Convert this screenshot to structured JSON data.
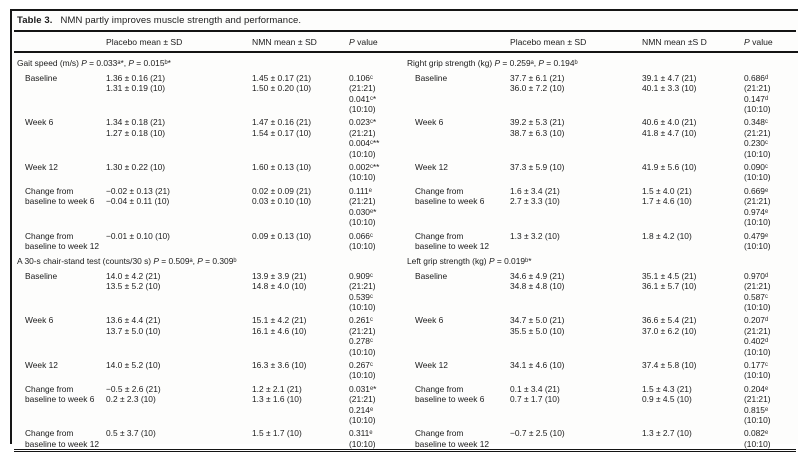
{
  "colors": {
    "text": "#1b1b1b",
    "rule": "#141414",
    "background": "#fdfdfc"
  },
  "table": {
    "caption_label": "Table 3.",
    "caption_text": "NMN partly improves muscle strength and performance.",
    "halves": [
      {
        "columns": [
          "",
          "Placebo mean ± SD",
          "NMN mean ± SD",
          "P value"
        ],
        "sections": [
          {
            "title": "Gait speed (m/s) P = 0.033ᵃ*, P = 0.015ᵇ*",
            "rows": [
              {
                "label": [
                  "Baseline"
                ],
                "placebo": [
                  "1.36 ± 0.16 (21)",
                  "1.31 ± 0.19 (10)"
                ],
                "nmn": [
                  "1.45 ± 0.17 (21)",
                  "1.50 ± 0.20 (10)"
                ],
                "p": [
                  "0.106ᶜ",
                  "(21:21)",
                  "0.041ᶜ*",
                  "(10:10)"
                ]
              },
              {
                "label": [
                  "Week 6"
                ],
                "placebo": [
                  "1.34 ± 0.18 (21)",
                  "1.27 ± 0.18 (10)"
                ],
                "nmn": [
                  "1.47 ± 0.16 (21)",
                  "1.54 ± 0.17 (10)"
                ],
                "p": [
                  "0.023ᶜ*",
                  "(21:21)",
                  "0.004ᶜ**",
                  "(10:10)"
                ]
              },
              {
                "label": [
                  "Week 12"
                ],
                "placebo": [
                  "1.30 ± 0.22 (10)"
                ],
                "nmn": [
                  "1.60 ± 0.13 (10)"
                ],
                "p": [
                  "0.002ᶜ**",
                  "(10:10)"
                ]
              },
              {
                "label": [
                  "Change from",
                  "baseline to week 6"
                ],
                "placebo": [
                  "−0.02 ± 0.13 (21)",
                  "−0.04 ± 0.11 (10)"
                ],
                "nmn": [
                  "0.02 ± 0.09 (21)",
                  "0.03 ± 0.10 (10)"
                ],
                "p": [
                  "0.111ᵉ",
                  "(21:21)",
                  "0.030ᵉ*",
                  "(10:10)"
                ]
              },
              {
                "label": [
                  "Change from",
                  "baseline to week 12"
                ],
                "placebo": [
                  "−0.01 ± 0.10 (10)"
                ],
                "nmn": [
                  "0.09 ± 0.13 (10)"
                ],
                "p": [
                  "0.066ᶜ",
                  "(10:10)"
                ]
              }
            ]
          },
          {
            "title": "A 30-s chair-stand test (counts/30 s) P = 0.509ᵃ, P = 0.309ᵇ",
            "rows": [
              {
                "label": [
                  "Baseline"
                ],
                "placebo": [
                  "14.0 ± 4.2 (21)",
                  "13.5 ± 5.2 (10)"
                ],
                "nmn": [
                  "13.9 ± 3.9 (21)",
                  "14.8 ± 4.0 (10)"
                ],
                "p": [
                  "0.909ᶜ",
                  "(21:21)",
                  "0.539ᶜ",
                  "(10:10)"
                ]
              },
              {
                "label": [
                  "Week 6"
                ],
                "placebo": [
                  "13.6 ± 4.4 (21)",
                  "13.7 ± 5.0 (10)"
                ],
                "nmn": [
                  "15.1 ± 4.2 (21)",
                  "16.1 ± 4.6 (10)"
                ],
                "p": [
                  "0.261ᶜ",
                  "(21:21)",
                  "0.278ᶜ",
                  "(10:10)"
                ]
              },
              {
                "label": [
                  "Week 12"
                ],
                "placebo": [
                  "14.0 ± 5.2 (10)"
                ],
                "nmn": [
                  "16.3 ± 3.6 (10)"
                ],
                "p": [
                  "0.267ᶜ",
                  "(10:10)"
                ]
              },
              {
                "label": [
                  "Change from",
                  "baseline to week 6"
                ],
                "placebo": [
                  "−0.5 ± 2.6 (21)",
                  "0.2 ± 2.3 (10)"
                ],
                "nmn": [
                  "1.2 ± 2.1 (21)",
                  "1.3 ± 1.6 (10)"
                ],
                "p": [
                  "0.031ᵉ*",
                  "(21:21)",
                  "0.214ᵉ",
                  "(10:10)"
                ]
              },
              {
                "label": [
                  "Change from",
                  "baseline to week 12"
                ],
                "placebo": [
                  "0.5 ± 3.7 (10)"
                ],
                "nmn": [
                  "1.5 ± 1.7 (10)"
                ],
                "p": [
                  "0.311ᵉ",
                  "(10:10)"
                ]
              }
            ]
          }
        ]
      },
      {
        "columns": [
          "",
          "Placebo mean ± SD",
          "NMN mean ±S D",
          "P value"
        ],
        "sections": [
          {
            "title": "Right grip strength (kg) P = 0.259ᵃ, P = 0.194ᵇ",
            "rows": [
              {
                "label": [
                  "Baseline"
                ],
                "placebo": [
                  "37.7 ± 6.1 (21)",
                  "36.0 ± 7.2 (10)"
                ],
                "nmn": [
                  "39.1 ± 4.7 (21)",
                  "40.1 ± 3.3 (10)"
                ],
                "p": [
                  "0.686ᵈ",
                  "(21:21)",
                  "0.147ᵈ",
                  "(10:10)"
                ]
              },
              {
                "label": [
                  "Week 6"
                ],
                "placebo": [
                  "39.2 ± 5.3 (21)",
                  "38.7 ± 6.3 (10)"
                ],
                "nmn": [
                  "40.6 ± 4.0 (21)",
                  "41.8 ± 4.7 (10)"
                ],
                "p": [
                  "0.348ᶜ",
                  "(21:21)",
                  "0.230ᶜ",
                  "(10:10)"
                ]
              },
              {
                "label": [
                  "Week 12"
                ],
                "placebo": [
                  "37.3 ± 5.9 (10)"
                ],
                "nmn": [
                  "41.9 ± 5.6 (10)"
                ],
                "p": [
                  "0.090ᶜ",
                  "(10:10)"
                ]
              },
              {
                "label": [
                  "Change from",
                  "baseline to week 6"
                ],
                "placebo": [
                  "1.6 ± 3.4 (21)",
                  "2.7 ± 3.3 (10)"
                ],
                "nmn": [
                  "1.5 ± 4.0 (21)",
                  "1.7 ± 4.6 (10)"
                ],
                "p": [
                  "0.669ᵉ",
                  "(21:21)",
                  "0.974ᵉ",
                  "(10:10)"
                ]
              },
              {
                "label": [
                  "Change from",
                  "baseline to week 12"
                ],
                "placebo": [
                  "1.3 ± 3.2 (10)"
                ],
                "nmn": [
                  "1.8 ± 4.2 (10)"
                ],
                "p": [
                  "0.479ᵉ",
                  "(10:10)"
                ]
              }
            ]
          },
          {
            "title": "Left grip strength (kg) P = 0.019ᵇ*",
            "rows": [
              {
                "label": [
                  "Baseline"
                ],
                "placebo": [
                  "34.6 ± 4.9 (21)",
                  "34.8 ± 4.8 (10)"
                ],
                "nmn": [
                  "35.1 ± 4.5 (21)",
                  "36.1 ± 5.7 (10)"
                ],
                "p": [
                  "0.970ᵈ",
                  "(21:21)",
                  "0.587ᶜ",
                  "(10:10)"
                ]
              },
              {
                "label": [
                  "Week 6"
                ],
                "placebo": [
                  "34.7 ± 5.0 (21)",
                  "35.5 ± 5.0 (10)"
                ],
                "nmn": [
                  "36.6 ± 5.4 (21)",
                  "37.0 ± 6.2 (10)"
                ],
                "p": [
                  "0.207ᵈ",
                  "(21:21)",
                  "0.402ᵈ",
                  "(10:10)"
                ]
              },
              {
                "label": [
                  "Week 12"
                ],
                "placebo": [
                  "34.1 ± 4.6 (10)"
                ],
                "nmn": [
                  "37.4 ± 5.8 (10)"
                ],
                "p": [
                  "0.177ᶜ",
                  "(10:10)"
                ]
              },
              {
                "label": [
                  "Change from",
                  "baseline to week 6"
                ],
                "placebo": [
                  "0.1 ± 3.4 (21)",
                  "0.7 ± 1.7 (10)"
                ],
                "nmn": [
                  "1.5 ± 4.3 (21)",
                  "0.9 ± 4.5 (10)"
                ],
                "p": [
                  "0.204ᵉ",
                  "(21:21)",
                  "0.815ᵉ",
                  "(10:10)"
                ]
              },
              {
                "label": [
                  "Change from",
                  "baseline to week 12"
                ],
                "placebo": [
                  "−0.7 ± 2.5 (10)"
                ],
                "nmn": [
                  "1.3 ± 2.7 (10)"
                ],
                "p": [
                  "0.082ᵉ",
                  "(10:10)"
                ]
              }
            ]
          }
        ]
      }
    ]
  }
}
